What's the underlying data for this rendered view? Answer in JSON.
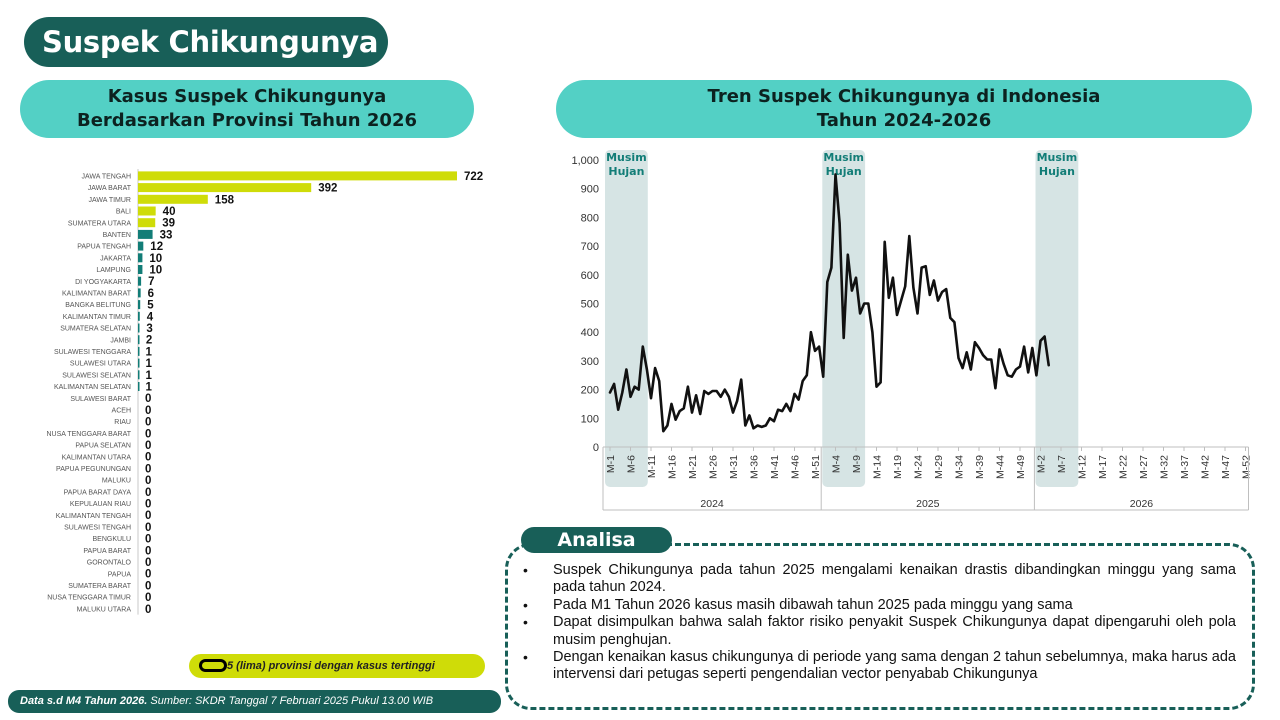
{
  "page": {
    "title": "Suspek Chikungunya",
    "legend_note": "5 (lima) provinsi dengan kasus tertinggi",
    "footer_bold": "Data s.d M4 Tahun 2026.",
    "footer_text": " Sumber: SKDR Tanggal 7 Februari 2025 Pukul 13.00 WIB"
  },
  "analysis": {
    "label": "Analisa",
    "items": [
      "Suspek Chikungunya pada tahun 2025 mengalami kenaikan drastis dibandingkan minggu yang sama pada tahun 2024.",
      "Pada M1 Tahun 2026 kasus masih dibawah tahun 2025 pada minggu yang sama",
      "Dapat disimpulkan bahwa salah faktor risiko penyakit Suspek Chikungunya dapat dipengaruhi oleh pola musim penghujan.",
      "Dengan kenaikan kasus chikungunya di periode yang sama dengan 2 tahun sebelumnya, maka harus ada intervensi dari petugas seperti pengendalian vector penyabab Chikungunya"
    ]
  },
  "colors": {
    "header_dark": "#185f58",
    "title_pill": "#53d0c5",
    "highlight_bar": "#cfdc08",
    "other_bar": "#127d77",
    "rain_band": "#d6e4e4",
    "line": "#111111"
  },
  "chart_data": [
    {
      "type": "bar",
      "orientation": "horizontal",
      "title_line1": "Kasus Suspek Chikungunya",
      "title_line2": "Berdasarkan Provinsi Tahun 2026",
      "highlight_top_n": 5,
      "categories": [
        "JAWA TENGAH",
        "JAWA BARAT",
        "JAWA TIMUR",
        "BALI",
        "SUMATERA UTARA",
        "BANTEN",
        "PAPUA TENGAH",
        "JAKARTA",
        "LAMPUNG",
        "DI YOGYAKARTA",
        "KALIMANTAN BARAT",
        "BANGKA BELITUNG",
        "KALIMANTAN TIMUR",
        "SUMATERA SELATAN",
        "JAMBI",
        "SULAWESI TENGGARA",
        "SULAWESI UTARA",
        "SULAWESI SELATAN",
        "KALIMANTAN SELATAN",
        "SULAWESI BARAT",
        "ACEH",
        "RIAU",
        "NUSA TENGGARA BARAT",
        "PAPUA SELATAN",
        "KALIMANTAN UTARA",
        "PAPUA PEGUNUNGAN",
        "MALUKU",
        "PAPUA BARAT DAYA",
        "KEPULAUAN RIAU",
        "KALIMANTAN TENGAH",
        "SULAWESI TENGAH",
        "BENGKULU",
        "PAPUA BARAT",
        "GORONTALO",
        "PAPUA",
        "SUMATERA BARAT",
        "NUSA TENGGARA TIMUR",
        "MALUKU UTARA"
      ],
      "values": [
        722,
        392,
        158,
        40,
        39,
        33,
        12,
        10,
        10,
        7,
        6,
        5,
        4,
        3,
        2,
        1,
        1,
        1,
        1,
        0,
        0,
        0,
        0,
        0,
        0,
        0,
        0,
        0,
        0,
        0,
        0,
        0,
        0,
        0,
        0,
        0,
        0,
        0
      ],
      "xlim": [
        0,
        722
      ]
    },
    {
      "type": "line",
      "title_line1": "Tren Suspek Chikungunya di Indonesia",
      "title_line2": "Tahun 2024-2026",
      "ylim": [
        0,
        1000
      ],
      "yticks": [
        "0",
        "100",
        "200",
        "300",
        "400",
        "500",
        "600",
        "700",
        "800",
        "900",
        "1,000"
      ],
      "year_labels": [
        "2024",
        "2025",
        "2026"
      ],
      "weeks_per_year": 52,
      "week_tick_labels": [
        "M-1",
        "M-6",
        "M-11",
        "M-16",
        "M-21",
        "M-26",
        "M-31",
        "M-36",
        "M-41",
        "M-46",
        "M-51",
        "M-4",
        "M-9",
        "M-14",
        "M-19",
        "M-24",
        "M-29",
        "M-34",
        "M-39",
        "M-44",
        "M-49",
        "M-2",
        "M-7",
        "M-12",
        "M-17",
        "M-22",
        "M-27",
        "M-32",
        "M-37",
        "M-42",
        "M-47",
        "M-52"
      ],
      "rain_bands": [
        {
          "label_line1": "Musim",
          "label_line2": "Hujan",
          "from_week_index": 0,
          "to_week_index": 8
        },
        {
          "label_line1": "Musim",
          "label_line2": "Hujan",
          "from_week_index": 53,
          "to_week_index": 61
        },
        {
          "label_line1": "Musim",
          "label_line2": "Hujan",
          "from_week_index": 105,
          "to_week_index": 113
        }
      ],
      "series": [
        {
          "values": [
            190,
            220,
            130,
            190,
            270,
            175,
            210,
            200,
            350,
            270,
            170,
            275,
            230,
            55,
            75,
            150,
            95,
            125,
            135,
            210,
            120,
            180,
            115,
            195,
            185,
            195,
            195,
            175,
            200,
            175,
            120,
            160,
            235,
            75,
            110,
            65,
            75,
            70,
            75,
            100,
            90,
            130,
            125,
            150,
            125,
            185,
            165,
            230,
            250,
            400,
            335,
            350,
            245,
            575,
            625,
            950,
            780,
            380,
            670,
            545,
            590,
            465,
            500,
            500,
            400,
            210,
            225,
            715,
            520,
            590,
            460,
            510,
            560,
            735,
            555,
            465,
            625,
            630,
            530,
            580,
            510,
            540,
            550,
            450,
            435,
            310,
            275,
            330,
            270,
            365,
            345,
            320,
            305,
            305,
            205,
            340,
            290,
            250,
            245,
            270,
            280,
            350,
            260,
            345,
            250,
            370,
            385,
            285
          ]
        }
      ]
    }
  ]
}
